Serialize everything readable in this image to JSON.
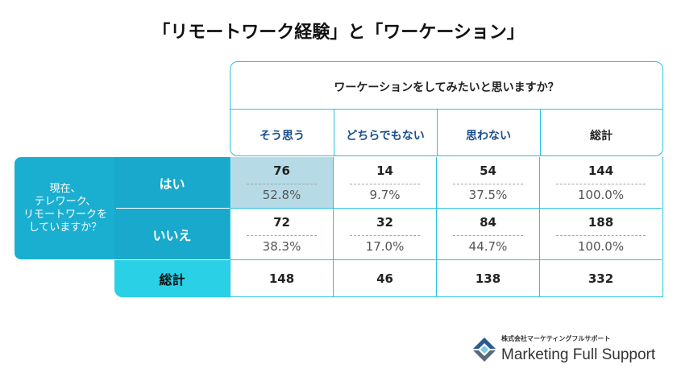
{
  "title": "「リモートワーク経験」と「ワーケーション」",
  "header": {
    "question": "ワーケーションをしてみたいと思いますか？",
    "columns": [
      "そう思う",
      "どちらでもない",
      "思わない",
      "総計"
    ]
  },
  "row_question": [
    "現在、",
    "テレワーク、",
    "リモートワークを",
    "していますか？"
  ],
  "rows": [
    {
      "label": "はい",
      "counts": [
        "76",
        "14",
        "54",
        "144"
      ],
      "percents": [
        "52.8%",
        "9.7%",
        "37.5%",
        "100.0%"
      ]
    },
    {
      "label": "いいえ",
      "counts": [
        "72",
        "32",
        "84",
        "188"
      ],
      "percents": [
        "38.3%",
        "17.0%",
        "44.7%",
        "100.0%"
      ]
    }
  ],
  "total_row": {
    "label": "総計",
    "values": [
      "148",
      "46",
      "138",
      "332"
    ]
  },
  "logo": {
    "company_small": "株式会社マーケティングフルサポート",
    "company_name": "Marketing Full Support"
  },
  "colors": {
    "accent": "#29c3dc",
    "row_label": "#18a9cc",
    "total_label": "#29d0e6",
    "highlight": "#b7dbe6",
    "column_text": "#1a4f8f"
  },
  "chart_data": {
    "type": "table",
    "title": "「リモートワーク経験」と「ワーケーション」",
    "column_question": "ワーケーションをしてみたいと思いますか？",
    "row_question": "現在、テレワーク、リモートワークをしていますか？",
    "columns": [
      "そう思う",
      "どちらでもない",
      "思わない",
      "総計"
    ],
    "rows": [
      "はい",
      "いいえ",
      "総計"
    ],
    "counts": [
      [
        76,
        14,
        54,
        144
      ],
      [
        72,
        32,
        84,
        188
      ],
      [
        148,
        46,
        138,
        332
      ]
    ],
    "row_percents": [
      [
        52.8,
        9.7,
        37.5,
        100.0
      ],
      [
        38.3,
        17.0,
        44.7,
        100.0
      ]
    ]
  }
}
